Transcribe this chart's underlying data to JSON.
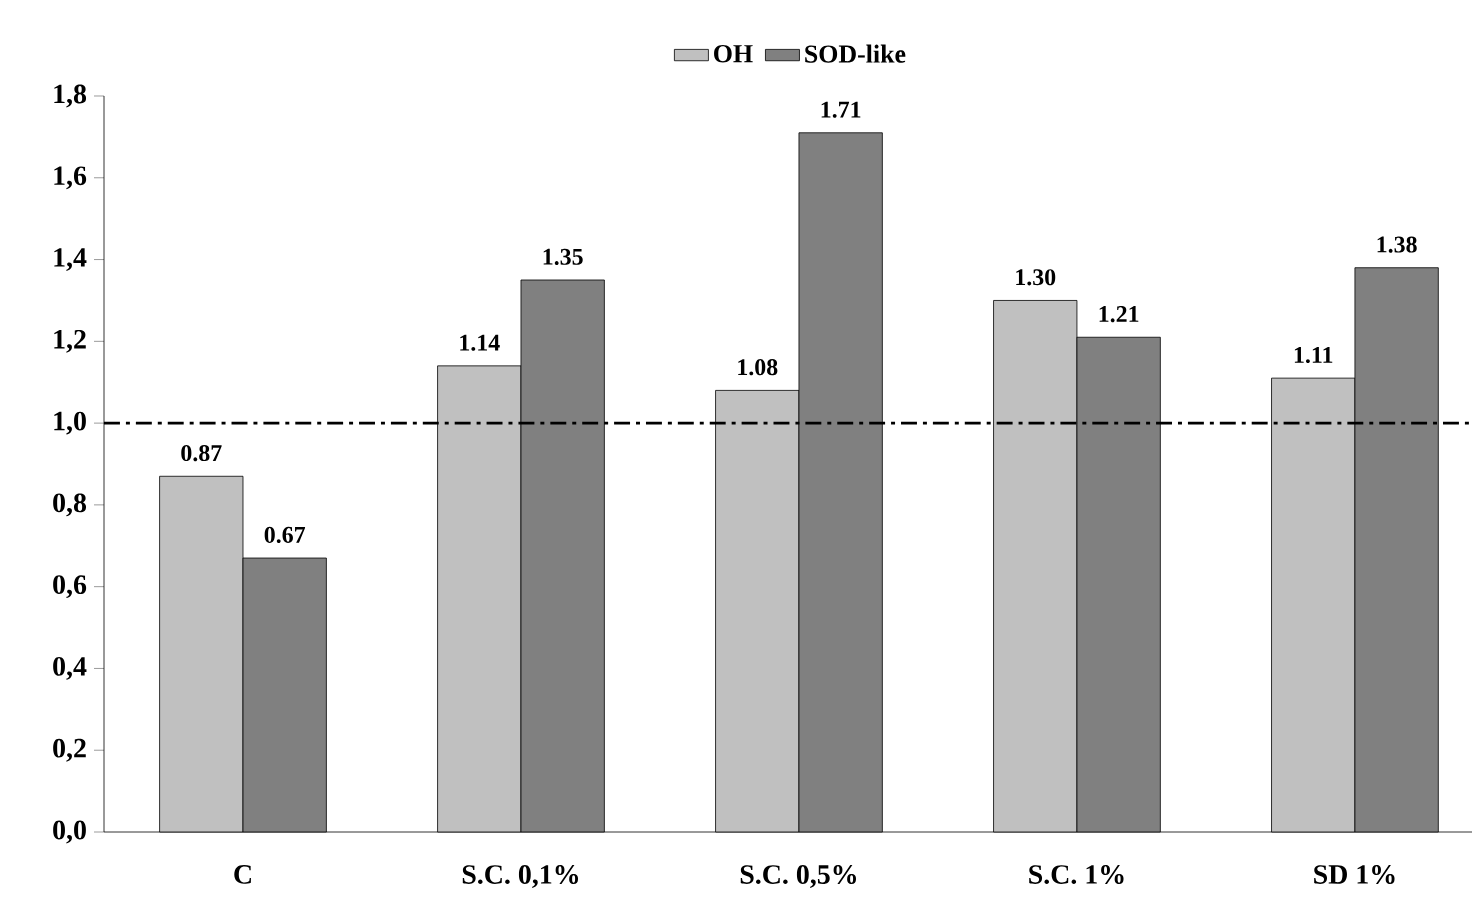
{
  "chart_data": {
    "type": "bar",
    "categories": [
      "C",
      "S.C. 0,1%",
      "S.C. 0,5%",
      "S.C. 1%",
      "SD 1%"
    ],
    "series": [
      {
        "name": "OH",
        "color": "#c0c0c0",
        "values": [
          0.87,
          1.14,
          1.08,
          1.3,
          1.11
        ],
        "value_labels": [
          "0.87",
          "1.14",
          "1.08",
          "1.30",
          "1.11"
        ]
      },
      {
        "name": "SOD-like",
        "color": "#808080",
        "values": [
          0.67,
          1.35,
          1.71,
          1.21,
          1.38
        ],
        "value_labels": [
          "0.67",
          "1.35",
          "1.71",
          "1.21",
          "1.38"
        ]
      }
    ],
    "ylim": [
      0,
      1.8
    ],
    "yticks": [
      {
        "value": 0,
        "label": "0,0"
      },
      {
        "value": 0.2,
        "label": "0,2"
      },
      {
        "value": 0.4,
        "label": "0,4"
      },
      {
        "value": 0.6,
        "label": "0,6"
      },
      {
        "value": 0.8,
        "label": "0,8"
      },
      {
        "value": 1.0,
        "label": "1,0"
      },
      {
        "value": 1.2,
        "label": "1,2"
      },
      {
        "value": 1.4,
        "label": "1,4"
      },
      {
        "value": 1.6,
        "label": "1,6"
      },
      {
        "value": 1.8,
        "label": "1,8"
      }
    ],
    "ref_lines": [
      {
        "axis": "y",
        "value": 1.0,
        "line_style": "dashdot"
      }
    ],
    "legend": "top",
    "grid": false
  }
}
